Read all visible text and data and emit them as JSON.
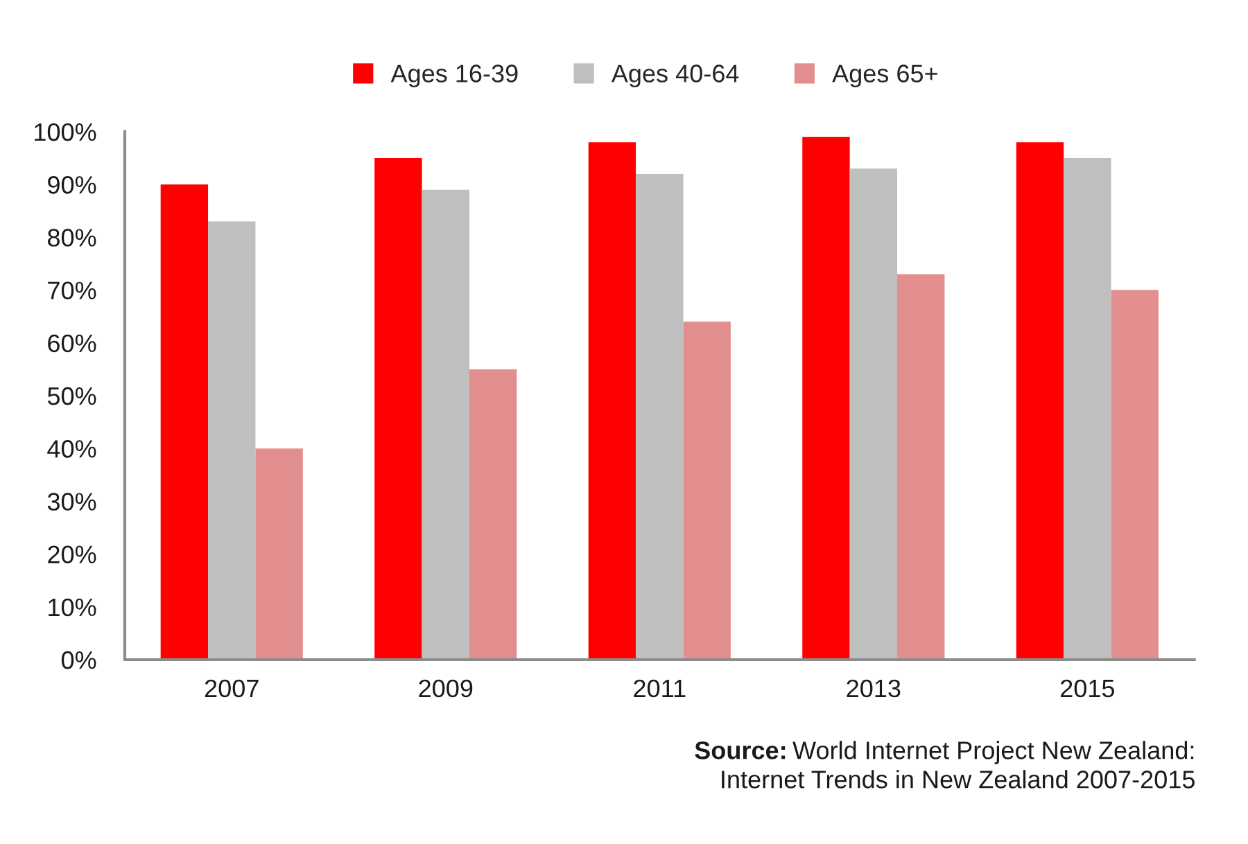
{
  "chart_data": {
    "type": "bar",
    "categories": [
      "2007",
      "2009",
      "2011",
      "2013",
      "2015"
    ],
    "series": [
      {
        "name": "Ages 16-39",
        "color": "#ff0000",
        "values": [
          90,
          95,
          98,
          99,
          98
        ]
      },
      {
        "name": "Ages 40-64",
        "color": "#bebfbe",
        "values": [
          83,
          89,
          92,
          93,
          95
        ]
      },
      {
        "name": "Ages 65+",
        "color": "#e38e8e",
        "values": [
          40,
          55,
          64,
          73,
          70
        ]
      }
    ],
    "ylim": [
      0,
      100
    ],
    "yticks": [
      {
        "value": 0,
        "label": "0%"
      },
      {
        "value": 10,
        "label": "10%"
      },
      {
        "value": 20,
        "label": "20%"
      },
      {
        "value": 30,
        "label": "30%"
      },
      {
        "value": 40,
        "label": "40%"
      },
      {
        "value": 50,
        "label": "50%"
      },
      {
        "value": 60,
        "label": "60%"
      },
      {
        "value": 70,
        "label": "70%"
      },
      {
        "value": 80,
        "label": "80%"
      },
      {
        "value": 90,
        "label": "90%"
      },
      {
        "value": 100,
        "label": "100%"
      }
    ],
    "legend": "top",
    "grid": false,
    "annotations": [
      "Source: World Internet Project New Zealand:\nInternet Trends in New Zealand 2007-2015"
    ]
  }
}
